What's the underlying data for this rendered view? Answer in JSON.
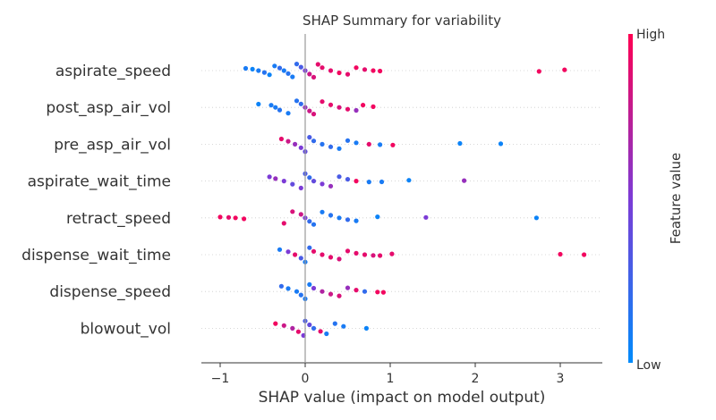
{
  "chart_data": {
    "type": "scatter",
    "title": "SHAP Summary for variability",
    "xlabel": "SHAP value (impact on model output)",
    "xlim": [
      -1.2,
      3.5
    ],
    "xticks": [
      -1,
      0,
      1,
      2,
      3
    ],
    "xtick_labels": [
      "−1",
      "0",
      "1",
      "2",
      "3"
    ],
    "zero_line": true,
    "features": [
      {
        "name": "aspirate_speed",
        "points": [
          {
            "x": -0.7,
            "v": 0.1
          },
          {
            "x": -0.62,
            "v": 0.05
          },
          {
            "x": -0.55,
            "v": 0.1
          },
          {
            "x": -0.48,
            "v": 0.15
          },
          {
            "x": -0.42,
            "v": 0.05
          },
          {
            "x": -0.36,
            "v": 0.1
          },
          {
            "x": -0.3,
            "v": 0.2
          },
          {
            "x": -0.25,
            "v": 0.1
          },
          {
            "x": -0.2,
            "v": 0.15
          },
          {
            "x": -0.15,
            "v": 0.1
          },
          {
            "x": -0.1,
            "v": 0.2
          },
          {
            "x": -0.05,
            "v": 0.3
          },
          {
            "x": 0.0,
            "v": 0.5
          },
          {
            "x": 0.05,
            "v": 0.8
          },
          {
            "x": 0.1,
            "v": 0.85
          },
          {
            "x": 0.15,
            "v": 0.9
          },
          {
            "x": 0.2,
            "v": 0.9
          },
          {
            "x": 0.3,
            "v": 0.9
          },
          {
            "x": 0.4,
            "v": 0.95
          },
          {
            "x": 0.5,
            "v": 0.9
          },
          {
            "x": 0.6,
            "v": 0.95
          },
          {
            "x": 0.7,
            "v": 0.9
          },
          {
            "x": 0.8,
            "v": 0.95
          },
          {
            "x": 0.88,
            "v": 0.95
          },
          {
            "x": 2.75,
            "v": 0.95
          },
          {
            "x": 3.05,
            "v": 0.95
          }
        ]
      },
      {
        "name": "post_asp_air_vol",
        "points": [
          {
            "x": -0.55,
            "v": 0.05
          },
          {
            "x": -0.4,
            "v": 0.1
          },
          {
            "x": -0.35,
            "v": 0.1
          },
          {
            "x": -0.3,
            "v": 0.15
          },
          {
            "x": -0.2,
            "v": 0.1
          },
          {
            "x": -0.1,
            "v": 0.15
          },
          {
            "x": -0.05,
            "v": 0.2
          },
          {
            "x": 0.0,
            "v": 0.6
          },
          {
            "x": 0.05,
            "v": 0.8
          },
          {
            "x": 0.1,
            "v": 0.85
          },
          {
            "x": 0.2,
            "v": 0.9
          },
          {
            "x": 0.3,
            "v": 0.9
          },
          {
            "x": 0.4,
            "v": 0.85
          },
          {
            "x": 0.5,
            "v": 0.9
          },
          {
            "x": 0.6,
            "v": 0.6
          },
          {
            "x": 0.68,
            "v": 0.95
          },
          {
            "x": 0.8,
            "v": 0.95
          }
        ]
      },
      {
        "name": "pre_asp_air_vol",
        "points": [
          {
            "x": -0.28,
            "v": 0.9
          },
          {
            "x": -0.2,
            "v": 0.8
          },
          {
            "x": -0.12,
            "v": 0.6
          },
          {
            "x": -0.05,
            "v": 0.5
          },
          {
            "x": 0.0,
            "v": 0.4
          },
          {
            "x": 0.05,
            "v": 0.3
          },
          {
            "x": 0.1,
            "v": 0.2
          },
          {
            "x": 0.2,
            "v": 0.15
          },
          {
            "x": 0.3,
            "v": 0.2
          },
          {
            "x": 0.4,
            "v": 0.1
          },
          {
            "x": 0.5,
            "v": 0.15
          },
          {
            "x": 0.6,
            "v": 0.1
          },
          {
            "x": 0.75,
            "v": 0.9
          },
          {
            "x": 0.88,
            "v": 0.1
          },
          {
            "x": 1.03,
            "v": 0.95
          },
          {
            "x": 1.82,
            "v": 0.05
          },
          {
            "x": 2.3,
            "v": 0.05
          }
        ]
      },
      {
        "name": "aspirate_wait_time",
        "points": [
          {
            "x": -0.42,
            "v": 0.5
          },
          {
            "x": -0.35,
            "v": 0.6
          },
          {
            "x": -0.25,
            "v": 0.5
          },
          {
            "x": -0.15,
            "v": 0.4
          },
          {
            "x": -0.05,
            "v": 0.5
          },
          {
            "x": 0.0,
            "v": 0.3
          },
          {
            "x": 0.05,
            "v": 0.2
          },
          {
            "x": 0.1,
            "v": 0.4
          },
          {
            "x": 0.2,
            "v": 0.5
          },
          {
            "x": 0.3,
            "v": 0.6
          },
          {
            "x": 0.4,
            "v": 0.3
          },
          {
            "x": 0.5,
            "v": 0.3
          },
          {
            "x": 0.6,
            "v": 0.95
          },
          {
            "x": 0.75,
            "v": 0.1
          },
          {
            "x": 0.9,
            "v": 0.1
          },
          {
            "x": 1.22,
            "v": 0.05
          },
          {
            "x": 1.87,
            "v": 0.6
          }
        ]
      },
      {
        "name": "retract_speed",
        "points": [
          {
            "x": -1.0,
            "v": 0.95
          },
          {
            "x": -0.9,
            "v": 0.9
          },
          {
            "x": -0.82,
            "v": 0.95
          },
          {
            "x": -0.72,
            "v": 0.95
          },
          {
            "x": -0.25,
            "v": 0.9
          },
          {
            "x": -0.15,
            "v": 0.85
          },
          {
            "x": -0.05,
            "v": 0.8
          },
          {
            "x": 0.0,
            "v": 0.5
          },
          {
            "x": 0.05,
            "v": 0.2
          },
          {
            "x": 0.1,
            "v": 0.15
          },
          {
            "x": 0.2,
            "v": 0.1
          },
          {
            "x": 0.3,
            "v": 0.15
          },
          {
            "x": 0.4,
            "v": 0.1
          },
          {
            "x": 0.5,
            "v": 0.2
          },
          {
            "x": 0.6,
            "v": 0.1
          },
          {
            "x": 0.85,
            "v": 0.05
          },
          {
            "x": 1.42,
            "v": 0.5
          },
          {
            "x": 2.72,
            "v": 0.05
          }
        ]
      },
      {
        "name": "dispense_wait_time",
        "points": [
          {
            "x": -0.3,
            "v": 0.1
          },
          {
            "x": -0.2,
            "v": 0.5
          },
          {
            "x": -0.12,
            "v": 0.9
          },
          {
            "x": -0.05,
            "v": 0.3
          },
          {
            "x": 0.0,
            "v": 0.1
          },
          {
            "x": 0.05,
            "v": 0.2
          },
          {
            "x": 0.1,
            "v": 0.9
          },
          {
            "x": 0.2,
            "v": 0.9
          },
          {
            "x": 0.3,
            "v": 0.9
          },
          {
            "x": 0.4,
            "v": 0.85
          },
          {
            "x": 0.5,
            "v": 0.9
          },
          {
            "x": 0.6,
            "v": 0.9
          },
          {
            "x": 0.7,
            "v": 0.9
          },
          {
            "x": 0.8,
            "v": 0.85
          },
          {
            "x": 0.88,
            "v": 0.9
          },
          {
            "x": 1.02,
            "v": 0.9
          },
          {
            "x": 3.0,
            "v": 0.95
          },
          {
            "x": 3.28,
            "v": 0.95
          }
        ]
      },
      {
        "name": "dispense_speed",
        "points": [
          {
            "x": -0.28,
            "v": 0.2
          },
          {
            "x": -0.2,
            "v": 0.1
          },
          {
            "x": -0.1,
            "v": 0.1
          },
          {
            "x": -0.05,
            "v": 0.15
          },
          {
            "x": 0.0,
            "v": 0.1
          },
          {
            "x": 0.05,
            "v": 0.1
          },
          {
            "x": 0.1,
            "v": 0.5
          },
          {
            "x": 0.2,
            "v": 0.7
          },
          {
            "x": 0.3,
            "v": 0.8
          },
          {
            "x": 0.4,
            "v": 0.85
          },
          {
            "x": 0.5,
            "v": 0.6
          },
          {
            "x": 0.6,
            "v": 0.9
          },
          {
            "x": 0.7,
            "v": 0.2
          },
          {
            "x": 0.85,
            "v": 0.95
          },
          {
            "x": 0.92,
            "v": 0.95
          }
        ]
      },
      {
        "name": "blowout_vol",
        "points": [
          {
            "x": -0.35,
            "v": 0.95
          },
          {
            "x": -0.25,
            "v": 0.8
          },
          {
            "x": -0.15,
            "v": 0.7
          },
          {
            "x": -0.08,
            "v": 0.9
          },
          {
            "x": -0.02,
            "v": 0.5
          },
          {
            "x": 0.0,
            "v": 0.3
          },
          {
            "x": 0.05,
            "v": 0.4
          },
          {
            "x": 0.1,
            "v": 0.2
          },
          {
            "x": 0.18,
            "v": 0.9
          },
          {
            "x": 0.25,
            "v": 0.1
          },
          {
            "x": 0.35,
            "v": 0.15
          },
          {
            "x": 0.45,
            "v": 0.1
          },
          {
            "x": 0.72,
            "v": 0.05
          }
        ]
      }
    ],
    "colorbar": {
      "label": "Feature value",
      "high_label": "High",
      "low_label": "Low",
      "low_color": "#008bfb",
      "mid_color": "#7c3bd6",
      "high_color": "#ff0052"
    }
  }
}
